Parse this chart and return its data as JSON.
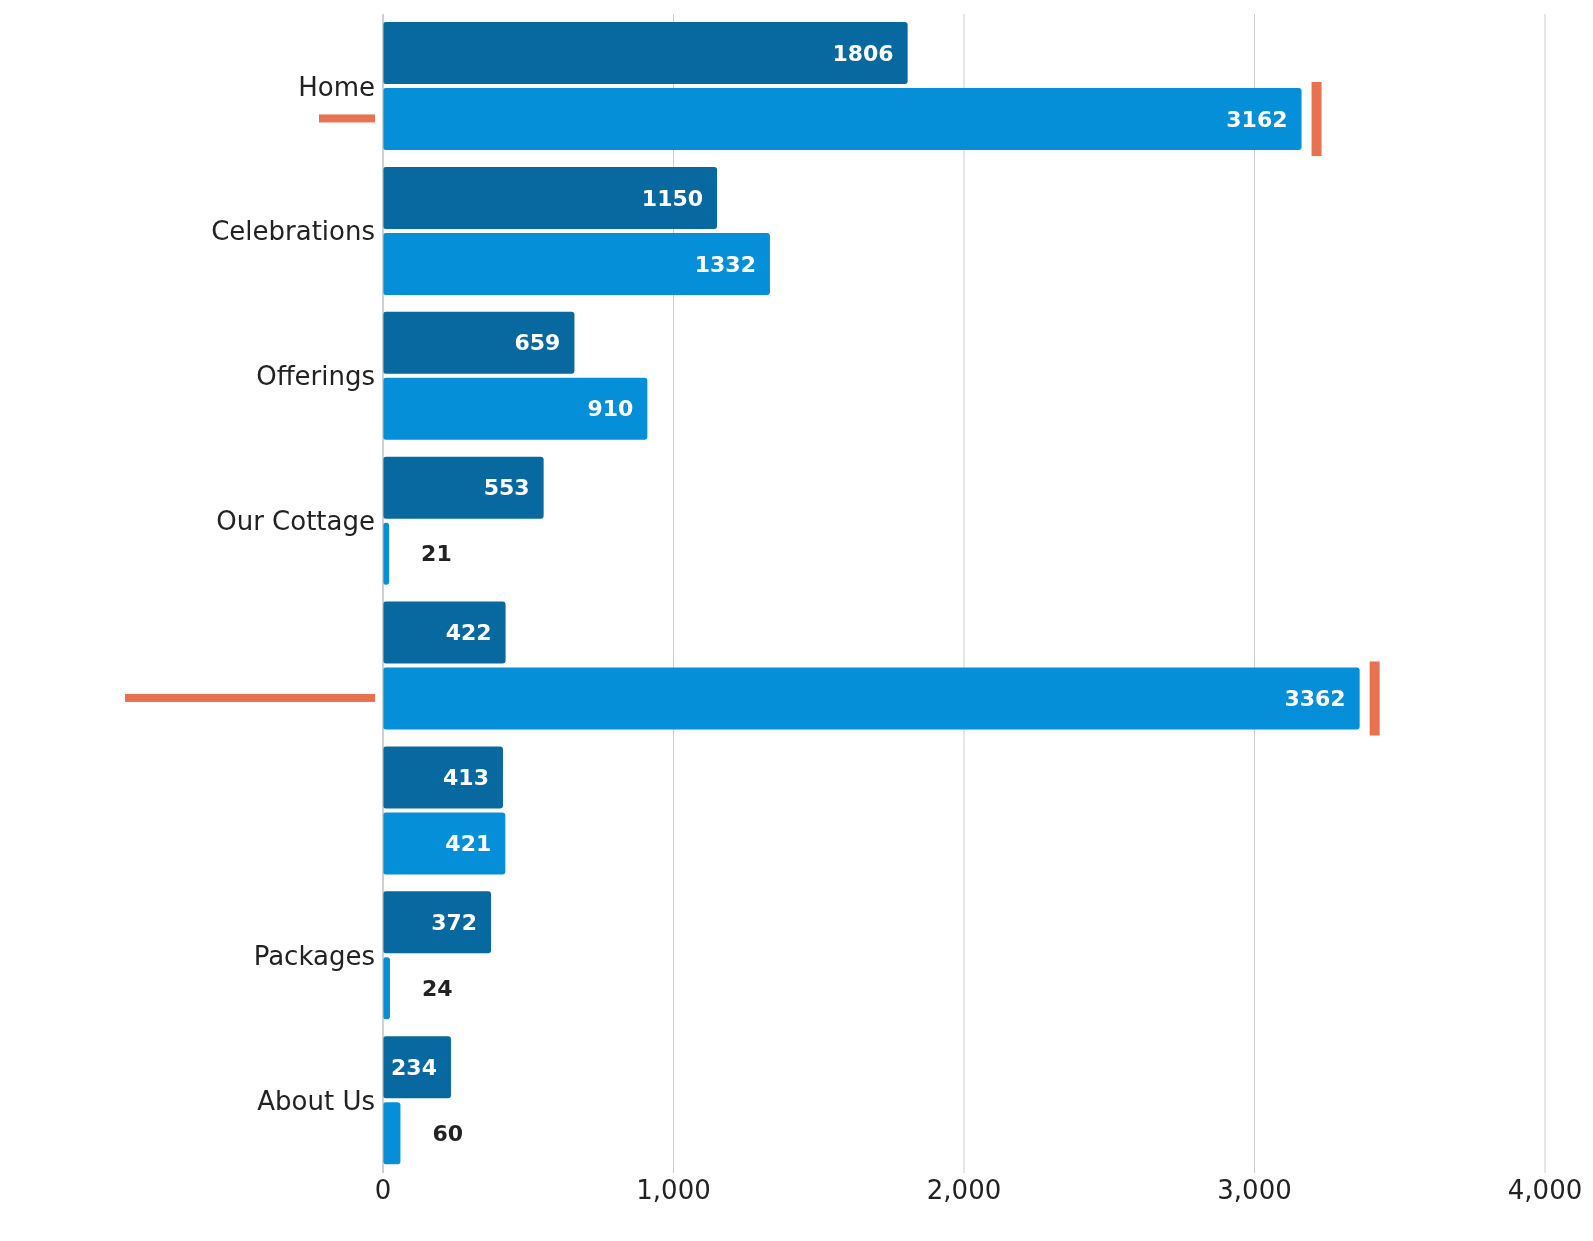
{
  "chart_data": {
    "type": "bar",
    "orientation": "horizontal",
    "categories": [
      "Home",
      "Celebrations",
      "Offerings",
      "Our Cottage",
      null,
      null,
      "Packages",
      "About Us"
    ],
    "series": [
      {
        "color": "#07699f",
        "values": [
          1806,
          1150,
          659,
          553,
          422,
          413,
          372,
          234
        ]
      },
      {
        "color": "#058fd8",
        "values": [
          3162,
          1332,
          910,
          21,
          3362,
          421,
          24,
          60
        ]
      }
    ],
    "xlim": [
      0,
      4000
    ],
    "xticks": [
      0,
      {
        "value": 1000,
        "label": "1,000"
      },
      {
        "value": 2000,
        "label": "2,000"
      },
      {
        "value": 3000,
        "label": "3,000"
      },
      {
        "value": 4000,
        "label": "4,000"
      }
    ],
    "grid": "x",
    "data_labels": true,
    "legend": false
  }
}
